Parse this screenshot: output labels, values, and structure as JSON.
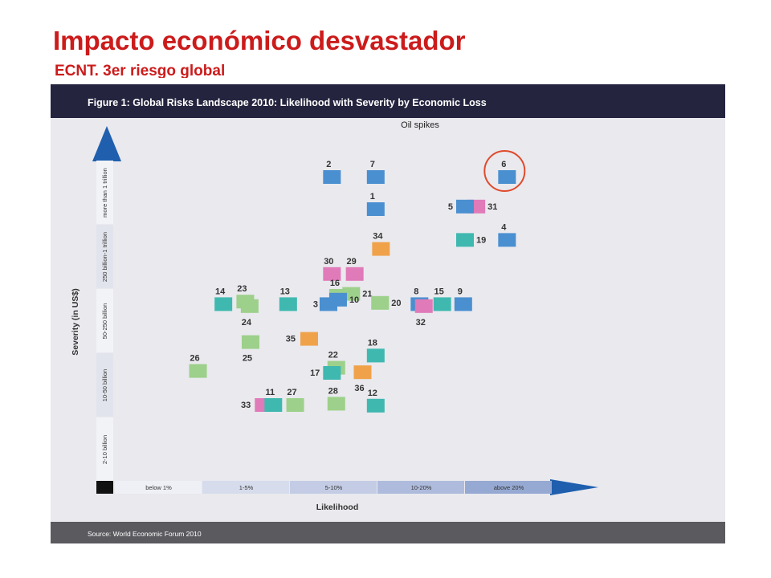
{
  "slide": {
    "title": "Impacto económico desvastador",
    "subtitle": "ECNT. 3er riesgo global",
    "callout": "Oil spikes"
  },
  "colors": {
    "title": "#cc1b1b",
    "header_band": "#24243f",
    "panel": "#e9e9ee",
    "footer_band": "#5a5a5f",
    "arrow": "#1f5fae",
    "highlight_circle": "#e04a2c"
  },
  "chart_data": {
    "type": "scatter",
    "title": "Figure 1: Global Risks Landscape 2010: Likelihood with Severity by Economic Loss",
    "xlabel": "Likelihood",
    "ylabel": "Severity (in US$)",
    "x_categories": [
      "below 1%",
      "1-5%",
      "5-10%",
      "10-20%",
      "above 20%"
    ],
    "y_categories": [
      "2-10 billion",
      "10-50 billion",
      "50-250 billion",
      "250 billion-1 trillion",
      "more than 1 trillion"
    ],
    "xlim": [
      0,
      5
    ],
    "ylim": [
      0,
      5
    ],
    "source": "Source: World Economic Forum 2010",
    "highlighted": "6",
    "category_colors": {
      "economic": "#4a8fd0",
      "geopolitical": "#3fb8b0",
      "environmental": "#9dd08a",
      "societal": "#f0a24a",
      "technological": "#e07ab8"
    },
    "points": [
      {
        "label": "2",
        "x": 2.48,
        "y": 4.75,
        "group": "economic"
      },
      {
        "label": "7",
        "x": 2.98,
        "y": 4.75,
        "group": "economic"
      },
      {
        "label": "6",
        "x": 4.48,
        "y": 4.75,
        "group": "economic"
      },
      {
        "label": "1",
        "x": 2.98,
        "y": 4.25,
        "group": "economic"
      },
      {
        "label": "31",
        "x": 4.13,
        "y": 4.29,
        "group": "technological"
      },
      {
        "label": "5",
        "x": 4.0,
        "y": 4.29,
        "group": "economic"
      },
      {
        "label": "19",
        "x": 4.0,
        "y": 3.77,
        "group": "geopolitical"
      },
      {
        "label": "4",
        "x": 4.48,
        "y": 3.77,
        "group": "economic"
      },
      {
        "label": "34",
        "x": 3.04,
        "y": 3.63,
        "group": "societal"
      },
      {
        "label": "30",
        "x": 2.48,
        "y": 3.24,
        "group": "technological"
      },
      {
        "label": "29",
        "x": 2.74,
        "y": 3.24,
        "group": "technological"
      },
      {
        "label": "16",
        "x": 2.55,
        "y": 2.9,
        "group": "environmental"
      },
      {
        "label": "21",
        "x": 2.7,
        "y": 2.93,
        "group": "environmental"
      },
      {
        "label": "3",
        "x": 2.44,
        "y": 2.77,
        "group": "economic"
      },
      {
        "label": "10",
        "x": 2.55,
        "y": 2.84,
        "group": "economic"
      },
      {
        "label": "14",
        "x": 1.24,
        "y": 2.77,
        "group": "geopolitical"
      },
      {
        "label": "23",
        "x": 1.49,
        "y": 2.81,
        "group": "environmental"
      },
      {
        "label": "24",
        "x": 1.54,
        "y": 2.74,
        "group": "environmental"
      },
      {
        "label": "13",
        "x": 1.98,
        "y": 2.77,
        "group": "geopolitical"
      },
      {
        "label": "20",
        "x": 3.03,
        "y": 2.79,
        "group": "environmental"
      },
      {
        "label": "8",
        "x": 3.48,
        "y": 2.77,
        "group": "economic"
      },
      {
        "label": "32",
        "x": 3.53,
        "y": 2.74,
        "group": "technological"
      },
      {
        "label": "15",
        "x": 3.74,
        "y": 2.77,
        "group": "geopolitical"
      },
      {
        "label": "9",
        "x": 3.98,
        "y": 2.77,
        "group": "economic"
      },
      {
        "label": "35",
        "x": 2.22,
        "y": 2.23,
        "group": "societal"
      },
      {
        "label": "25",
        "x": 1.55,
        "y": 2.18,
        "group": "environmental"
      },
      {
        "label": "18",
        "x": 2.98,
        "y": 1.97,
        "group": "geopolitical"
      },
      {
        "label": "22",
        "x": 2.53,
        "y": 1.78,
        "group": "environmental"
      },
      {
        "label": "36",
        "x": 2.83,
        "y": 1.71,
        "group": "societal"
      },
      {
        "label": "17",
        "x": 2.48,
        "y": 1.7,
        "group": "geopolitical"
      },
      {
        "label": "26",
        "x": 0.95,
        "y": 1.73,
        "group": "environmental"
      },
      {
        "label": "33",
        "x": 1.7,
        "y": 1.2,
        "group": "technological"
      },
      {
        "label": "11",
        "x": 1.81,
        "y": 1.2,
        "group": "geopolitical"
      },
      {
        "label": "27",
        "x": 2.06,
        "y": 1.2,
        "group": "environmental"
      },
      {
        "label": "28",
        "x": 2.53,
        "y": 1.22,
        "group": "environmental"
      },
      {
        "label": "12",
        "x": 2.98,
        "y": 1.19,
        "group": "geopolitical"
      }
    ]
  }
}
